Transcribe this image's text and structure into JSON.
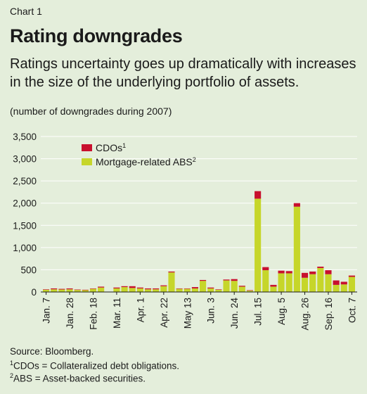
{
  "header": {
    "chart_label": "Chart 1",
    "title": "Rating downgrades",
    "subtitle": "Ratings uncertainty goes up dramatically with increases in the size of the underlying portfolio of assets.",
    "units": "(number of downgrades during 2007)"
  },
  "footer": {
    "source": "Source: Bloomberg.",
    "note1_mark": "1",
    "note1": "CDOs = Collateralized debt obligations.",
    "note2_mark": "2",
    "note2": "ABS = Asset-backed securities."
  },
  "colors": {
    "background": "#e4eedb",
    "cdos": "#c8102e",
    "abs": "#c6d62a"
  },
  "chart_data": {
    "type": "bar",
    "stacked": true,
    "legend_position": "top-left",
    "ylim": [
      0,
      3500
    ],
    "yticks": [
      "0",
      "500",
      "1,000",
      "1,500",
      "2,000",
      "2,500",
      "3,000",
      "3,500"
    ],
    "ytick_values": [
      0,
      500,
      1000,
      1500,
      2000,
      2500,
      3000,
      3500
    ],
    "xtick_labels": [
      "Jan. 7",
      "Jan. 28",
      "Feb. 18",
      "Mar. 11",
      "Apr. 1",
      "Apr. 22",
      "May 13",
      "Jun. 3",
      "Jun. 24",
      "Jul. 15",
      "Aug. 5",
      "Aug. 26",
      "Sep. 16",
      "Oct. 7"
    ],
    "xtick_every": 3,
    "bar_count": 40,
    "series": [
      {
        "name": "Mortgage-related ABS",
        "name_sup": "2",
        "color": "#c6d62a",
        "values": [
          50,
          60,
          55,
          60,
          45,
          40,
          70,
          100,
          0,
          80,
          110,
          90,
          80,
          60,
          60,
          130,
          440,
          70,
          70,
          80,
          250,
          80,
          50,
          260,
          250,
          120,
          30,
          2100,
          490,
          120,
          420,
          420,
          1920,
          320,
          400,
          540,
          400,
          160,
          170,
          340
        ]
      },
      {
        "name": "CDOs",
        "name_sup": "1",
        "color": "#c8102e",
        "values": [
          10,
          20,
          15,
          20,
          10,
          10,
          10,
          20,
          0,
          20,
          20,
          40,
          20,
          20,
          20,
          20,
          20,
          10,
          10,
          30,
          20,
          20,
          10,
          20,
          40,
          20,
          10,
          170,
          70,
          40,
          60,
          50,
          80,
          110,
          60,
          30,
          90,
          100,
          60,
          30
        ]
      }
    ]
  }
}
